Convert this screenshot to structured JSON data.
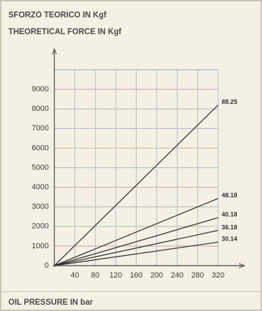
{
  "chart_data": {
    "type": "line",
    "title": "SFORZO TEORICO IN Kgf",
    "subtitle": "THEORETICAL FORCE IN Kgf",
    "x_label": "OIL PRESSURE IN bar",
    "x": [
      0,
      320
    ],
    "series": [
      {
        "name": "88.25",
        "color": "#333333",
        "values": [
          0,
          8200
        ]
      },
      {
        "name": "48.18",
        "color": "#333333",
        "values": [
          0,
          3430
        ]
      },
      {
        "name": "40.18",
        "color": "#333333",
        "values": [
          0,
          2450
        ]
      },
      {
        "name": "36.18",
        "color": "#333333",
        "values": [
          0,
          1800
        ]
      },
      {
        "name": "30.14",
        "color": "#333333",
        "values": [
          0,
          1200
        ]
      }
    ],
    "xlim": [
      0,
      320
    ],
    "xticks": [
      40,
      80,
      120,
      160,
      200,
      240,
      280,
      320
    ],
    "ylim": [
      0,
      10000
    ],
    "yticks": [
      0,
      1000,
      2000,
      3000,
      4000,
      5000,
      6000,
      7000,
      8000,
      9000
    ],
    "grid": true
  }
}
